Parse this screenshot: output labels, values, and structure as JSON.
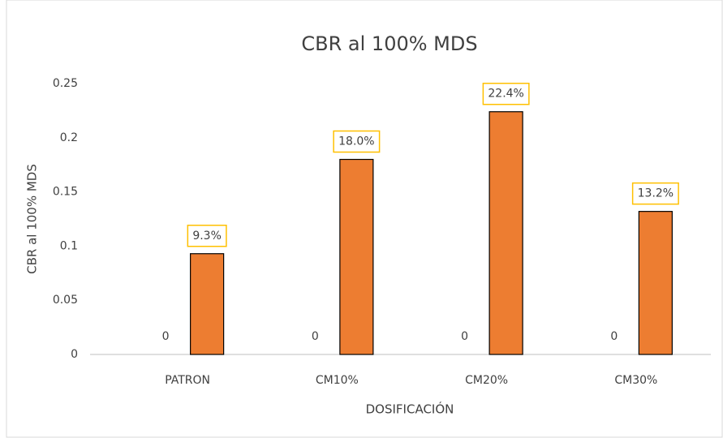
{
  "chart_data": {
    "type": "bar",
    "title": "CBR al 100% MDS",
    "x_label": "DOSIFICACIÓN",
    "y_label": "CBR al 100% MDS",
    "categories": [
      "PATRON",
      "CM10%",
      "CM20%",
      "CM30%"
    ],
    "series": [
      {
        "values": [
          0,
          0,
          0,
          0
        ]
      },
      {
        "color": "#ed7d31",
        "values": [
          0.093,
          0.18,
          0.224,
          0.132
        ],
        "value_labels": [
          "9.3%",
          "18.0%",
          "22.4%",
          "13.2%"
        ]
      }
    ],
    "ylim": [
      0,
      0.25
    ],
    "yticks": [
      0,
      0.05,
      0.1,
      0.15,
      0.2,
      0.25
    ],
    "grid": false
  }
}
